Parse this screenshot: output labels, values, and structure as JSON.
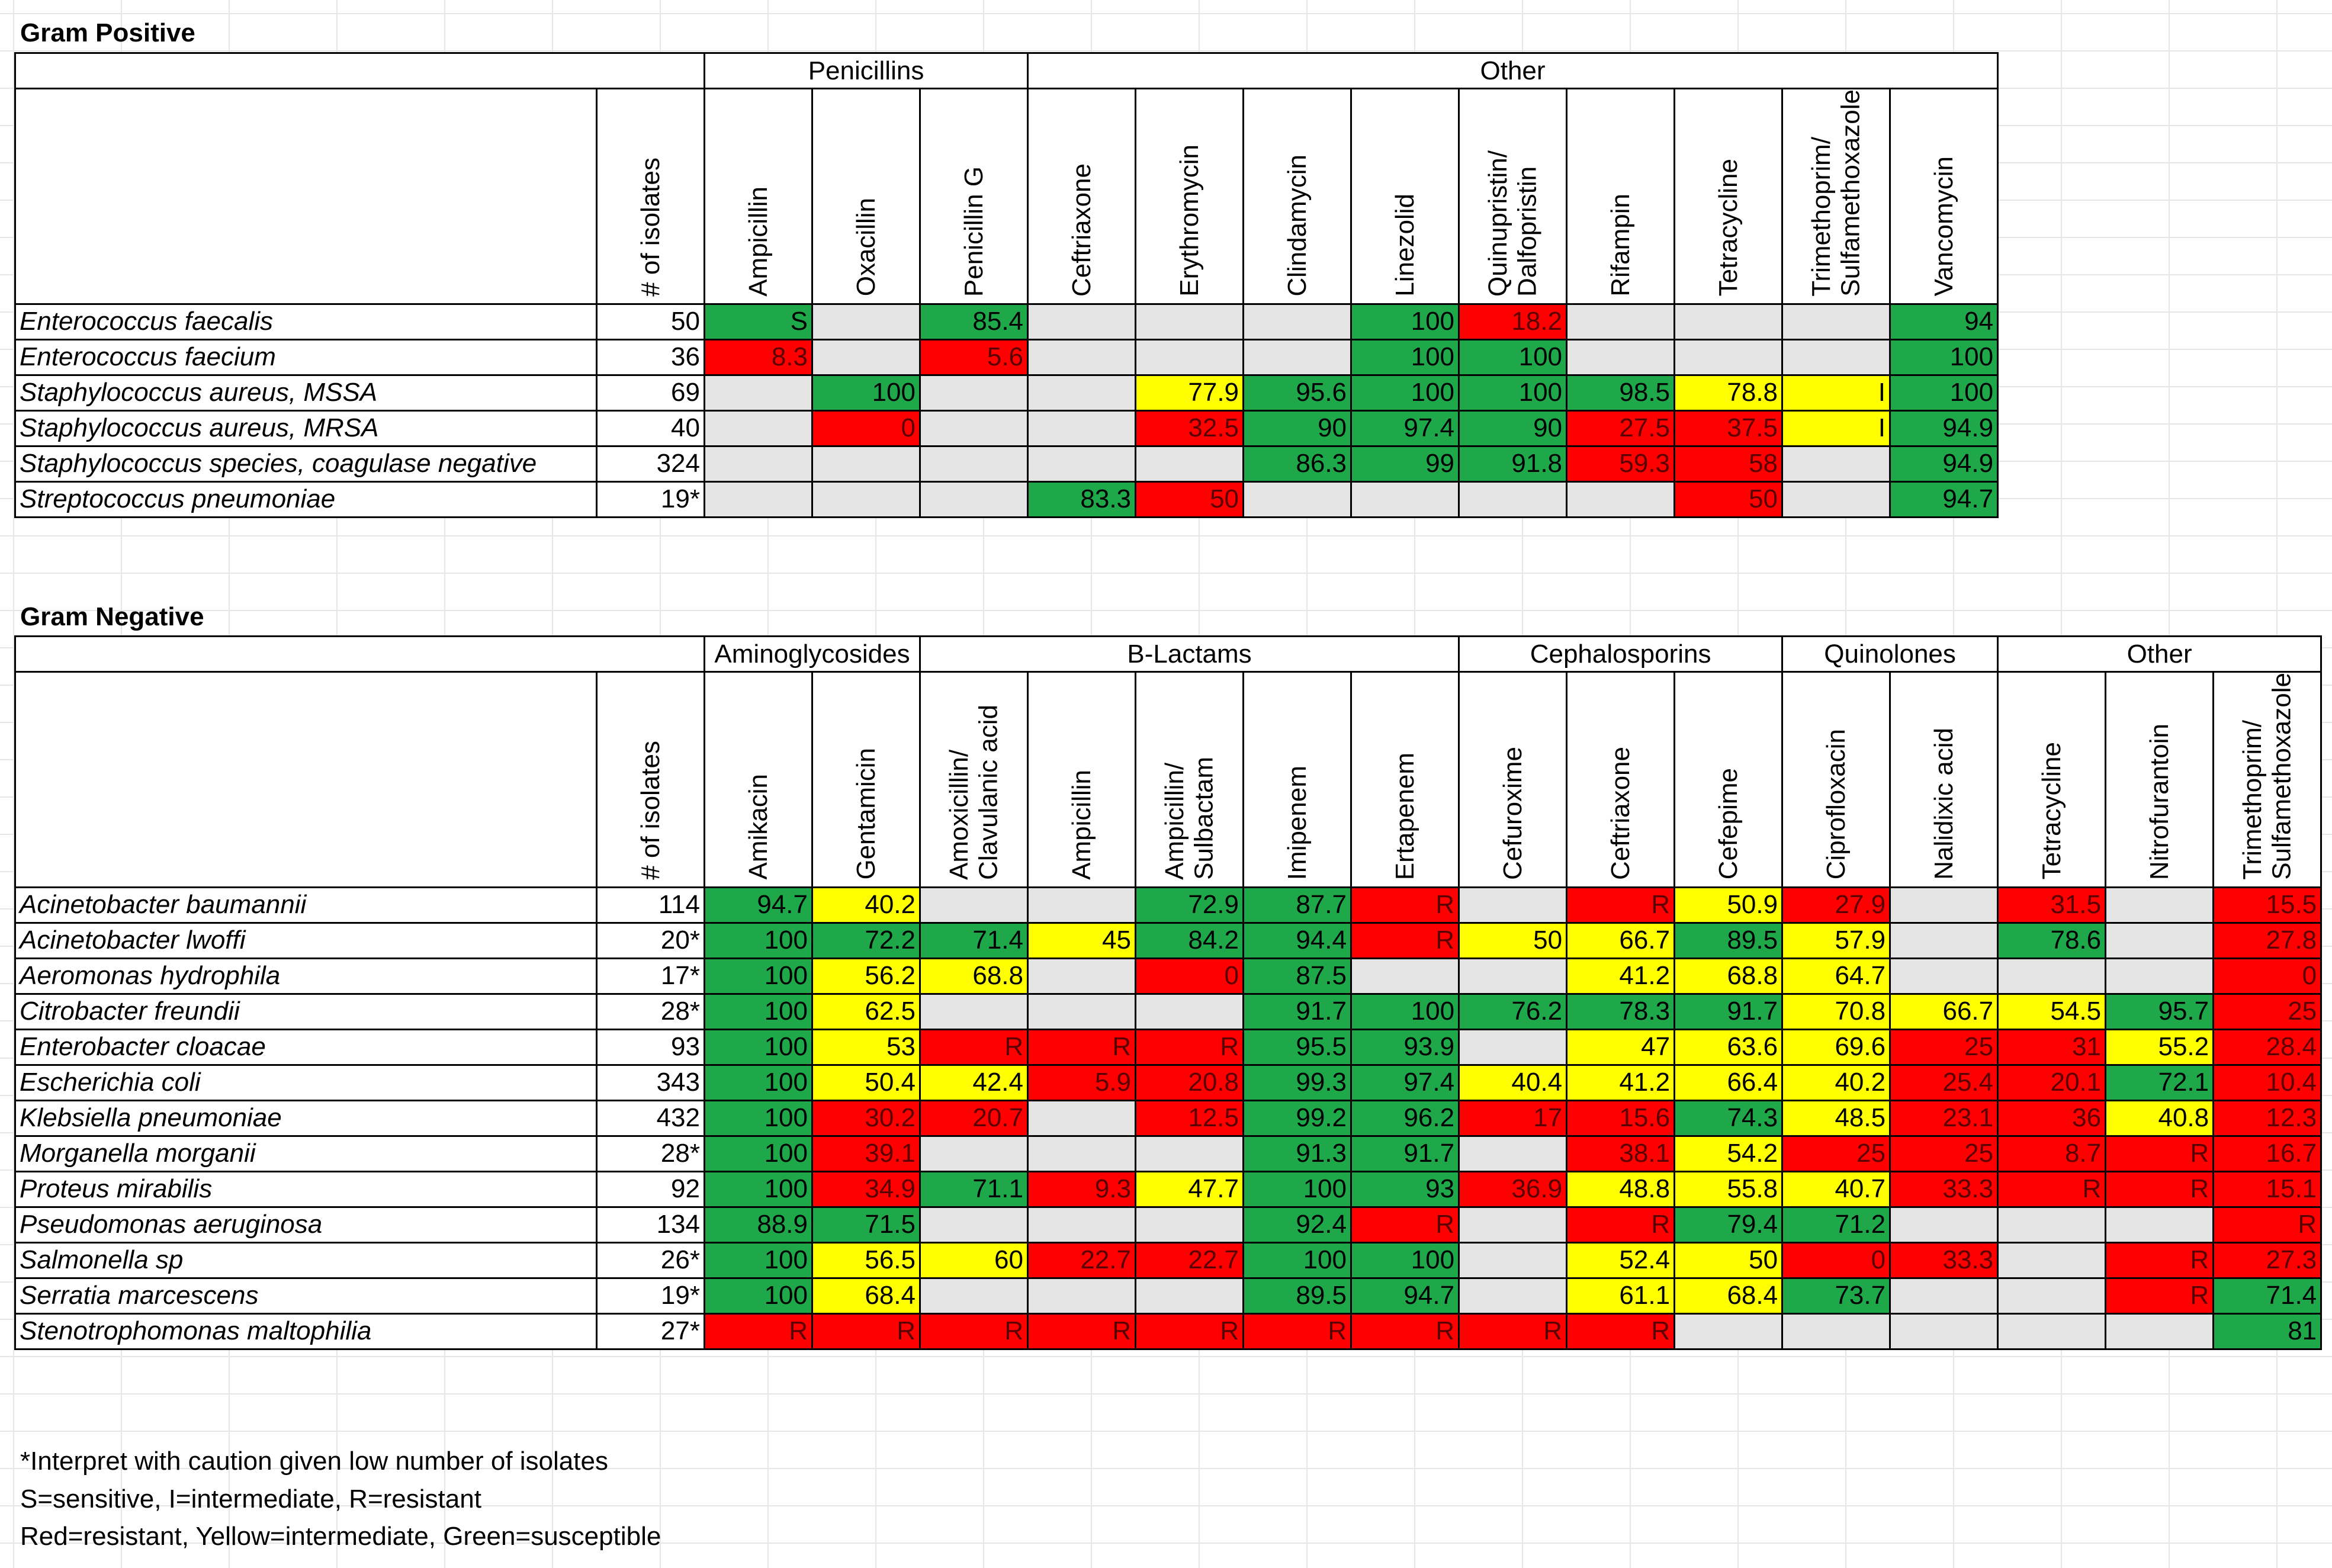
{
  "gram_positive": {
    "title": "Gram Positive",
    "groups": [
      {
        "label": "",
        "span": 2
      },
      {
        "label": "Penicillins",
        "span": 3
      },
      {
        "label": "Other",
        "span": 9
      }
    ],
    "headers": [
      "# of isolates",
      "Ampicillin",
      "Oxacillin",
      "Penicillin G",
      "Ceftriaxone",
      "Erythromycin",
      "Clindamycin",
      "Linezolid",
      "Quinupristin/\nDalfopristin",
      "Rifampin",
      "Tetracycline",
      "Trimethoprim/\nSulfamethoxazole",
      "Vancomycin"
    ],
    "rows": [
      {
        "org": "Enterococcus faecalis",
        "n": "50",
        "cells": [
          [
            "S",
            "g"
          ],
          [
            "",
            "n"
          ],
          [
            "85.4",
            "g"
          ],
          [
            "",
            "n"
          ],
          [
            "",
            "n"
          ],
          [
            "",
            "n"
          ],
          [
            "100",
            "g"
          ],
          [
            "18.2",
            "r"
          ],
          [
            "",
            "n"
          ],
          [
            "",
            "n"
          ],
          [
            "",
            "n"
          ],
          [
            "94",
            "g"
          ]
        ]
      },
      {
        "org": "Enterococcus faecium",
        "n": "36",
        "cells": [
          [
            "8.3",
            "r"
          ],
          [
            "",
            "n"
          ],
          [
            "5.6",
            "r"
          ],
          [
            "",
            "n"
          ],
          [
            "",
            "n"
          ],
          [
            "",
            "n"
          ],
          [
            "100",
            "g"
          ],
          [
            "100",
            "g"
          ],
          [
            "",
            "n"
          ],
          [
            "",
            "n"
          ],
          [
            "",
            "n"
          ],
          [
            "100",
            "g"
          ]
        ]
      },
      {
        "org": "Staphylococcus aureus, MSSA",
        "n": "69",
        "cells": [
          [
            "",
            "n"
          ],
          [
            "100",
            "g"
          ],
          [
            "",
            "n"
          ],
          [
            "",
            "n"
          ],
          [
            "77.9",
            "y"
          ],
          [
            "95.6",
            "g"
          ],
          [
            "100",
            "g"
          ],
          [
            "100",
            "g"
          ],
          [
            "98.5",
            "g"
          ],
          [
            "78.8",
            "y"
          ],
          [
            "I",
            "y"
          ],
          [
            "100",
            "g"
          ]
        ]
      },
      {
        "org": "Staphylococcus aureus, MRSA",
        "n": "40",
        "cells": [
          [
            "",
            "n"
          ],
          [
            "0",
            "r"
          ],
          [
            "",
            "n"
          ],
          [
            "",
            "n"
          ],
          [
            "32.5",
            "r"
          ],
          [
            "90",
            "g"
          ],
          [
            "97.4",
            "g"
          ],
          [
            "90",
            "g"
          ],
          [
            "27.5",
            "r"
          ],
          [
            "37.5",
            "r"
          ],
          [
            "I",
            "y"
          ],
          [
            "94.9",
            "g"
          ]
        ]
      },
      {
        "org": "Staphylococcus species, coagulase negative",
        "n": "324",
        "cells": [
          [
            "",
            "n"
          ],
          [
            "",
            "n"
          ],
          [
            "",
            "n"
          ],
          [
            "",
            "n"
          ],
          [
            "",
            "n"
          ],
          [
            "86.3",
            "g"
          ],
          [
            "99",
            "g"
          ],
          [
            "91.8",
            "g"
          ],
          [
            "59.3",
            "r"
          ],
          [
            "58",
            "r"
          ],
          [
            "",
            "n"
          ],
          [
            "94.9",
            "g"
          ]
        ]
      },
      {
        "org": "Streptococcus pneumoniae",
        "n": "19*",
        "cells": [
          [
            "",
            "n"
          ],
          [
            "",
            "n"
          ],
          [
            "",
            "n"
          ],
          [
            "83.3",
            "g"
          ],
          [
            "50",
            "r"
          ],
          [
            "",
            "n"
          ],
          [
            "",
            "n"
          ],
          [
            "",
            "n"
          ],
          [
            "",
            "n"
          ],
          [
            "50",
            "r"
          ],
          [
            "",
            "n"
          ],
          [
            "94.7",
            "g"
          ]
        ]
      }
    ]
  },
  "gram_negative": {
    "title": "Gram Negative",
    "groups": [
      {
        "label": "",
        "span": 2
      },
      {
        "label": "Aminoglycosides",
        "span": 2
      },
      {
        "label": "B-Lactams",
        "span": 5
      },
      {
        "label": "Cephalosporins",
        "span": 3
      },
      {
        "label": "Quinolones",
        "span": 2
      },
      {
        "label": "Other",
        "span": 3
      }
    ],
    "headers": [
      "# of isolates",
      "Amikacin",
      "Gentamicin",
      "Amoxicillin/\nClavulanic acid",
      "Ampicillin",
      "Ampicillin/\nSulbactam",
      "Imipenem",
      "Ertapenem",
      "Cefuroxime",
      "Ceftriaxone",
      "Cefepime",
      "Ciprofloxacin",
      "Nalidixic acid",
      "Tetracycline",
      "Nitrofurantoin",
      "Trimethoprim/\nSulfamethoxazole"
    ],
    "rows": [
      {
        "org": "Acinetobacter baumannii",
        "n": "114",
        "cells": [
          [
            "94.7",
            "g"
          ],
          [
            "40.2",
            "y"
          ],
          [
            "",
            "n"
          ],
          [
            "",
            "n"
          ],
          [
            "72.9",
            "g"
          ],
          [
            "87.7",
            "g"
          ],
          [
            "R",
            "r"
          ],
          [
            "",
            "n"
          ],
          [
            "R",
            "r"
          ],
          [
            "50.9",
            "y"
          ],
          [
            "27.9",
            "r"
          ],
          [
            "",
            "n"
          ],
          [
            "31.5",
            "r"
          ],
          [
            "",
            "n"
          ],
          [
            "15.5",
            "r"
          ]
        ]
      },
      {
        "org": "Acinetobacter lwoffi",
        "n": "20*",
        "cells": [
          [
            "100",
            "g"
          ],
          [
            "72.2",
            "g"
          ],
          [
            "71.4",
            "g"
          ],
          [
            "45",
            "y"
          ],
          [
            "84.2",
            "g"
          ],
          [
            "94.4",
            "g"
          ],
          [
            "R",
            "r"
          ],
          [
            "50",
            "y"
          ],
          [
            "66.7",
            "y"
          ],
          [
            "89.5",
            "g"
          ],
          [
            "57.9",
            "y"
          ],
          [
            "",
            "n"
          ],
          [
            "78.6",
            "g"
          ],
          [
            "",
            "n"
          ],
          [
            "27.8",
            "r"
          ]
        ]
      },
      {
        "org": "Aeromonas hydrophila",
        "n": "17*",
        "cells": [
          [
            "100",
            "g"
          ],
          [
            "56.2",
            "y"
          ],
          [
            "68.8",
            "y"
          ],
          [
            "",
            "n"
          ],
          [
            "0",
            "r"
          ],
          [
            "87.5",
            "g"
          ],
          [
            "",
            "n"
          ],
          [
            "",
            "n"
          ],
          [
            "41.2",
            "y"
          ],
          [
            "68.8",
            "y"
          ],
          [
            "64.7",
            "y"
          ],
          [
            "",
            "n"
          ],
          [
            "",
            "n"
          ],
          [
            "",
            "n"
          ],
          [
            "0",
            "r"
          ]
        ]
      },
      {
        "org": "Citrobacter freundii",
        "n": "28*",
        "cells": [
          [
            "100",
            "g"
          ],
          [
            "62.5",
            "y"
          ],
          [
            "",
            "n"
          ],
          [
            "",
            "n"
          ],
          [
            "",
            "n"
          ],
          [
            "91.7",
            "g"
          ],
          [
            "100",
            "g"
          ],
          [
            "76.2",
            "g"
          ],
          [
            "78.3",
            "g"
          ],
          [
            "91.7",
            "g"
          ],
          [
            "70.8",
            "y"
          ],
          [
            "66.7",
            "y"
          ],
          [
            "54.5",
            "y"
          ],
          [
            "95.7",
            "g"
          ],
          [
            "25",
            "r"
          ]
        ]
      },
      {
        "org": "Enterobacter cloacae",
        "n": "93",
        "cells": [
          [
            "100",
            "g"
          ],
          [
            "53",
            "y"
          ],
          [
            "R",
            "r"
          ],
          [
            "R",
            "r"
          ],
          [
            "R",
            "r"
          ],
          [
            "95.5",
            "g"
          ],
          [
            "93.9",
            "g"
          ],
          [
            "",
            "n"
          ],
          [
            "47",
            "y"
          ],
          [
            "63.6",
            "y"
          ],
          [
            "69.6",
            "y"
          ],
          [
            "25",
            "r"
          ],
          [
            "31",
            "r"
          ],
          [
            "55.2",
            "y"
          ],
          [
            "28.4",
            "r"
          ]
        ]
      },
      {
        "org": "Escherichia coli",
        "n": "343",
        "cells": [
          [
            "100",
            "g"
          ],
          [
            "50.4",
            "y"
          ],
          [
            "42.4",
            "y"
          ],
          [
            "5.9",
            "r"
          ],
          [
            "20.8",
            "r"
          ],
          [
            "99.3",
            "g"
          ],
          [
            "97.4",
            "g"
          ],
          [
            "40.4",
            "y"
          ],
          [
            "41.2",
            "y"
          ],
          [
            "66.4",
            "y"
          ],
          [
            "40.2",
            "y"
          ],
          [
            "25.4",
            "r"
          ],
          [
            "20.1",
            "r"
          ],
          [
            "72.1",
            "g"
          ],
          [
            "10.4",
            "r"
          ]
        ]
      },
      {
        "org": "Klebsiella pneumoniae",
        "n": "432",
        "cells": [
          [
            "100",
            "g"
          ],
          [
            "30.2",
            "r"
          ],
          [
            "20.7",
            "r"
          ],
          [
            "",
            "n"
          ],
          [
            "12.5",
            "r"
          ],
          [
            "99.2",
            "g"
          ],
          [
            "96.2",
            "g"
          ],
          [
            "17",
            "r"
          ],
          [
            "15.6",
            "r"
          ],
          [
            "74.3",
            "g"
          ],
          [
            "48.5",
            "y"
          ],
          [
            "23.1",
            "r"
          ],
          [
            "36",
            "r"
          ],
          [
            "40.8",
            "y"
          ],
          [
            "12.3",
            "r"
          ]
        ]
      },
      {
        "org": "Morganella morganii",
        "n": "28*",
        "cells": [
          [
            "100",
            "g"
          ],
          [
            "39.1",
            "r"
          ],
          [
            "",
            "n"
          ],
          [
            "",
            "n"
          ],
          [
            "",
            "n"
          ],
          [
            "91.3",
            "g"
          ],
          [
            "91.7",
            "g"
          ],
          [
            "",
            "n"
          ],
          [
            "38.1",
            "r"
          ],
          [
            "54.2",
            "y"
          ],
          [
            "25",
            "r"
          ],
          [
            "25",
            "r"
          ],
          [
            "8.7",
            "r"
          ],
          [
            "R",
            "r"
          ],
          [
            "16.7",
            "r"
          ]
        ]
      },
      {
        "org": "Proteus mirabilis",
        "n": "92",
        "cells": [
          [
            "100",
            "g"
          ],
          [
            "34.9",
            "r"
          ],
          [
            "71.1",
            "g"
          ],
          [
            "9.3",
            "r"
          ],
          [
            "47.7",
            "y"
          ],
          [
            "100",
            "g"
          ],
          [
            "93",
            "g"
          ],
          [
            "36.9",
            "r"
          ],
          [
            "48.8",
            "y"
          ],
          [
            "55.8",
            "y"
          ],
          [
            "40.7",
            "y"
          ],
          [
            "33.3",
            "r"
          ],
          [
            "R",
            "r"
          ],
          [
            "R",
            "r"
          ],
          [
            "15.1",
            "r"
          ]
        ]
      },
      {
        "org": "Pseudomonas aeruginosa",
        "n": "134",
        "cells": [
          [
            "88.9",
            "g"
          ],
          [
            "71.5",
            "g"
          ],
          [
            "",
            "n"
          ],
          [
            "",
            "n"
          ],
          [
            "",
            "n"
          ],
          [
            "92.4",
            "g"
          ],
          [
            "R",
            "r"
          ],
          [
            "",
            "n"
          ],
          [
            "R",
            "r"
          ],
          [
            "79.4",
            "g"
          ],
          [
            "71.2",
            "g"
          ],
          [
            "",
            "n"
          ],
          [
            "",
            "n"
          ],
          [
            "",
            "n"
          ],
          [
            "R",
            "r"
          ]
        ]
      },
      {
        "org": "Salmonella sp",
        "n": "26*",
        "cells": [
          [
            "100",
            "g"
          ],
          [
            "56.5",
            "y"
          ],
          [
            "60",
            "y"
          ],
          [
            "22.7",
            "r"
          ],
          [
            "22.7",
            "r"
          ],
          [
            "100",
            "g"
          ],
          [
            "100",
            "g"
          ],
          [
            "",
            "n"
          ],
          [
            "52.4",
            "y"
          ],
          [
            "50",
            "y"
          ],
          [
            "0",
            "r"
          ],
          [
            "33.3",
            "r"
          ],
          [
            "",
            "n"
          ],
          [
            "R",
            "r"
          ],
          [
            "27.3",
            "r"
          ]
        ]
      },
      {
        "org": "Serratia marcescens",
        "n": "19*",
        "cells": [
          [
            "100",
            "g"
          ],
          [
            "68.4",
            "y"
          ],
          [
            "",
            "n"
          ],
          [
            "",
            "n"
          ],
          [
            "",
            "n"
          ],
          [
            "89.5",
            "g"
          ],
          [
            "94.7",
            "g"
          ],
          [
            "",
            "n"
          ],
          [
            "61.1",
            "y"
          ],
          [
            "68.4",
            "y"
          ],
          [
            "73.7",
            "g"
          ],
          [
            "",
            "n"
          ],
          [
            "",
            "n"
          ],
          [
            "R",
            "r"
          ],
          [
            "71.4",
            "g"
          ]
        ]
      },
      {
        "org": "Stenotrophomonas maltophilia",
        "n": "27*",
        "cells": [
          [
            "R",
            "r"
          ],
          [
            "R",
            "r"
          ],
          [
            "R",
            "r"
          ],
          [
            "R",
            "r"
          ],
          [
            "R",
            "r"
          ],
          [
            "R",
            "r"
          ],
          [
            "R",
            "r"
          ],
          [
            "R",
            "r"
          ],
          [
            "R",
            "r"
          ],
          [
            "",
            "n"
          ],
          [
            "",
            "n"
          ],
          [
            "",
            "n"
          ],
          [
            "",
            "n"
          ],
          [
            "",
            "n"
          ],
          [
            "81",
            "g"
          ]
        ]
      }
    ]
  },
  "notes": [
    "*Interpret with caution given low number of isolates",
    "S=sensitive, I=intermediate, R=resistant",
    "Red=resistant, Yellow=intermediate, Green=susceptible"
  ]
}
